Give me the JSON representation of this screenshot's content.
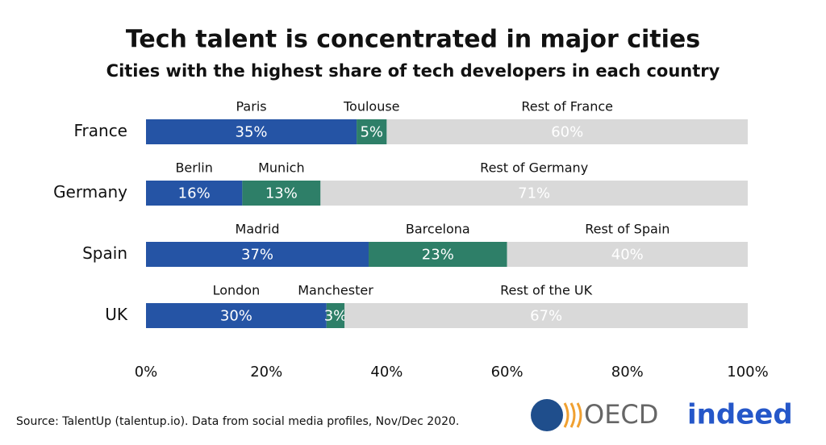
{
  "chart_data": {
    "type": "stacked-bar-h",
    "title": "Tech talent is concentrated in major cities",
    "subtitle": "Cities with the highest share of tech developers in each country",
    "categories": [
      "France",
      "Germany",
      "Spain",
      "UK"
    ],
    "segment_names": [
      [
        "Paris",
        "Toulouse",
        "Rest of France"
      ],
      [
        "Berlin",
        "Munich",
        "Rest of Germany"
      ],
      [
        "Madrid",
        "Barcelona",
        "Rest of Spain"
      ],
      [
        "London",
        "Manchester",
        "Rest of the UK"
      ]
    ],
    "values": [
      [
        35,
        5,
        60
      ],
      [
        16,
        13,
        71
      ],
      [
        37,
        23,
        40
      ],
      [
        30,
        3,
        67
      ]
    ],
    "value_labels": [
      [
        "35%",
        "5%",
        "60%"
      ],
      [
        "16%",
        "13%",
        "71%"
      ],
      [
        "37%",
        "23%",
        "40%"
      ],
      [
        "30%",
        "3%",
        "67%"
      ]
    ],
    "colors": [
      "#2554a5",
      "#2e7f68",
      "#d9d9d9"
    ],
    "xlim": [
      0,
      100
    ],
    "xticks": [
      {
        "value": 0,
        "label": "0%"
      },
      {
        "value": 20,
        "label": "20%"
      },
      {
        "value": 40,
        "label": "40%"
      },
      {
        "value": 60,
        "label": "60%"
      },
      {
        "value": 80,
        "label": "80%"
      },
      {
        "value": 100,
        "label": "100%"
      }
    ]
  },
  "footer": {
    "source": "Source: TalentUp (talentup.io). Data from social media profiles, Nov/Dec 2020.",
    "logos": [
      "OECD",
      "indeed"
    ]
  }
}
